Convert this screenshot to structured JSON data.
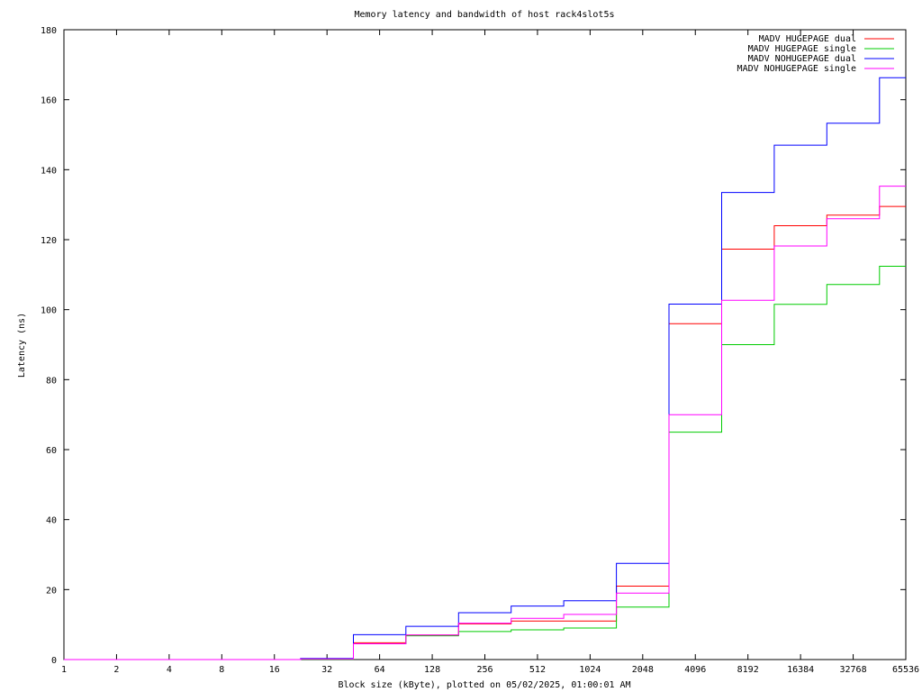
{
  "chart_data": {
    "type": "line",
    "step": true,
    "title": "Memory latency and bandwidth of host rack4slot5s",
    "xlabel": "Block size (kByte), plotted on 05/02/2025, 01:00:01 AM",
    "ylabel": "Latency (ns)",
    "x_scale": "log2",
    "x_ticks": [
      1,
      2,
      4,
      8,
      16,
      32,
      64,
      128,
      256,
      512,
      1024,
      2048,
      4096,
      8192,
      16384,
      32768,
      65536
    ],
    "xlim": [
      1,
      65536
    ],
    "ylim": [
      0,
      180
    ],
    "y_ticks": [
      0,
      20,
      40,
      60,
      80,
      100,
      120,
      140,
      160,
      180
    ],
    "grid": false,
    "legend_position": "top-right",
    "x": [
      1,
      1.41,
      2,
      2.83,
      4,
      5.66,
      8,
      11.3,
      16,
      22.6,
      32,
      45.3,
      64,
      90.5,
      128,
      181,
      256,
      362,
      512,
      724,
      1024,
      1448,
      2048,
      2896,
      4096,
      5793,
      8192,
      11585,
      16384,
      23170,
      32768,
      46341,
      65536
    ],
    "series": [
      {
        "name": "MADV HUGEPAGE dual",
        "color": "#ff0000",
        "values": [
          0,
          0,
          0,
          0,
          0,
          0,
          0,
          0,
          0,
          0.2,
          0.2,
          4.8,
          4.8,
          7,
          7,
          10.2,
          10.2,
          11,
          11,
          11,
          11,
          21,
          21,
          96,
          96,
          117.3,
          117.3,
          124,
          124,
          127,
          127,
          129.5,
          129.5
        ]
      },
      {
        "name": "MADV HUGEPAGE single",
        "color": "#00cc00",
        "values": [
          0,
          0,
          0,
          0,
          0,
          0,
          0,
          0,
          0,
          0.1,
          0.1,
          4.5,
          4.5,
          6.8,
          6.8,
          8,
          8,
          8.5,
          8.5,
          9,
          9,
          15,
          15,
          65,
          65,
          90,
          90,
          101.5,
          101.5,
          107.2,
          107.2,
          112.4,
          112.4
        ]
      },
      {
        "name": "MADV NOHUGEPAGE dual",
        "color": "#0000ff",
        "values": [
          0,
          0,
          0,
          0,
          0,
          0,
          0,
          0,
          0,
          0.3,
          0.3,
          7.1,
          7.1,
          9.5,
          9.5,
          13.4,
          13.4,
          15.3,
          15.3,
          16.8,
          16.8,
          27.5,
          27.5,
          101.6,
          101.6,
          133.5,
          133.5,
          147,
          147,
          153.3,
          153.3,
          166.3,
          166.3
        ]
      },
      {
        "name": "MADV NOHUGEPAGE single",
        "color": "#ff00ff",
        "values": [
          0,
          0,
          0,
          0,
          0,
          0,
          0,
          0,
          0,
          0.2,
          0.2,
          4.5,
          4.5,
          7,
          7,
          10.4,
          10.4,
          11.8,
          11.8,
          12.9,
          12.9,
          19,
          19,
          70,
          70,
          102.7,
          102.7,
          118.2,
          118.2,
          126,
          126,
          135.3,
          135.3
        ]
      }
    ]
  }
}
